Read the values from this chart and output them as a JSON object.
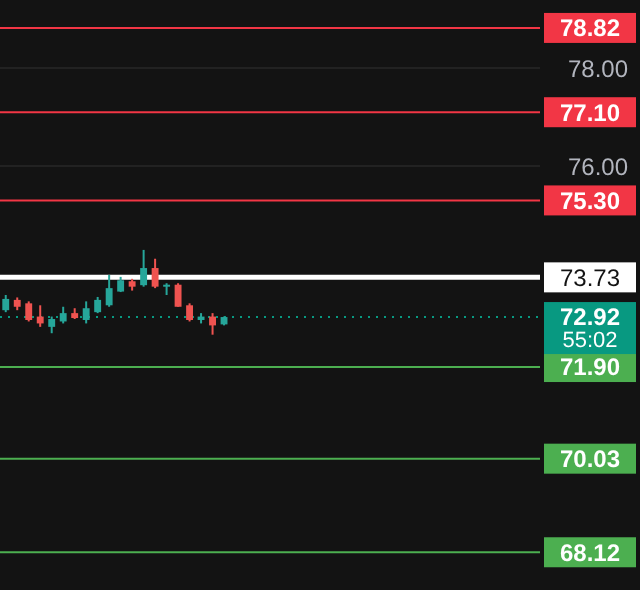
{
  "chart_data": {
    "type": "candlestick",
    "categories": [
      null,
      null,
      null,
      null,
      null,
      null,
      null,
      null,
      null,
      null,
      null,
      null,
      null,
      null,
      null,
      null,
      null,
      null,
      null,
      null,
      null,
      null,
      null,
      null,
      null,
      null,
      null,
      null,
      null,
      null,
      null,
      null,
      null,
      null,
      null,
      null,
      null,
      null,
      null,
      null,
      null,
      null,
      null,
      null,
      null,
      null,
      null
    ],
    "ohlc": [
      [
        73.06,
        73.37,
        73.02,
        73.29
      ],
      [
        73.27,
        73.32,
        73.06,
        73.13
      ],
      [
        73.2,
        73.24,
        72.83,
        72.86
      ],
      [
        72.93,
        73.16,
        72.72,
        72.79
      ],
      [
        72.72,
        72.93,
        72.59,
        72.88
      ],
      [
        72.83,
        73.13,
        72.79,
        73.0
      ],
      [
        73.0,
        73.1,
        72.88,
        72.9
      ],
      [
        72.86,
        73.24,
        72.79,
        73.1
      ],
      [
        73.02,
        73.33,
        73.0,
        73.27
      ],
      [
        73.16,
        73.78,
        73.13,
        73.51
      ],
      [
        73.44,
        73.74,
        73.43,
        73.67
      ],
      [
        73.65,
        73.7,
        73.46,
        73.54
      ],
      [
        73.57,
        74.29,
        73.54,
        73.92
      ],
      [
        73.92,
        74.11,
        73.51,
        73.54
      ],
      [
        73.54,
        73.61,
        73.37,
        73.58
      ],
      [
        73.58,
        73.61,
        73.13,
        73.13
      ],
      [
        73.16,
        73.2,
        72.83,
        72.86
      ],
      [
        72.86,
        73.0,
        72.79,
        72.93
      ],
      [
        72.93,
        73.0,
        72.56,
        72.75
      ],
      [
        72.77,
        72.93,
        72.75,
        72.92
      ],
      null,
      null,
      null,
      null,
      null,
      null,
      null,
      null,
      null,
      null,
      null,
      null,
      null,
      null,
      null,
      null,
      null,
      null,
      null,
      null,
      null,
      null,
      null,
      null,
      null,
      null,
      null
    ],
    "colors": [
      "#26a69a",
      "#ef5350",
      "#ef5350",
      "#ef5350",
      "#26a69a",
      "#26a69a",
      "#ef5350",
      "#26a69a",
      "#26a69a",
      "#26a69a",
      "#26a69a",
      "#ef5350",
      "#26a69a",
      "#ef5350",
      "#26a69a",
      "#ef5350",
      "#ef5350",
      "#26a69a",
      "#ef5350",
      "#26a69a",
      null,
      null,
      null,
      null,
      null,
      null,
      null,
      null,
      null,
      null,
      null,
      null,
      null,
      null,
      null,
      null,
      null,
      null,
      null,
      null,
      null,
      null,
      null,
      null,
      null,
      null,
      null
    ],
    "ylim": [
      67.35,
      79.39
    ],
    "yticks": [
      {
        "value": 76,
        "label": "76.00"
      },
      {
        "value": 78,
        "label": "78.00"
      }
    ],
    "tick_labels": "y",
    "grid": "y",
    "ref_lines": [
      {
        "axis": "y",
        "value": 78.82,
        "label": "78.82",
        "color": "#f23645"
      },
      {
        "axis": "y",
        "value": 77.1,
        "label": "77.10",
        "color": "#f23645"
      },
      {
        "axis": "y",
        "value": 75.3,
        "label": "75.30",
        "color": "#f23645"
      },
      {
        "axis": "y",
        "value": 73.73,
        "label": "73.73",
        "color": "#ffffff"
      },
      {
        "axis": "y",
        "value": 72.92,
        "label": "72.92",
        "color": "#089981",
        "line_style": "dotted"
      },
      {
        "axis": "y",
        "value": 71.9,
        "label": "71.90",
        "color": "#4caf50"
      },
      {
        "axis": "y",
        "value": 70.03,
        "label": "70.03",
        "color": "#4caf50"
      },
      {
        "axis": "y",
        "value": 68.12,
        "label": "68.12",
        "color": "#4caf50"
      }
    ],
    "annotations": [
      "55:02"
    ]
  }
}
